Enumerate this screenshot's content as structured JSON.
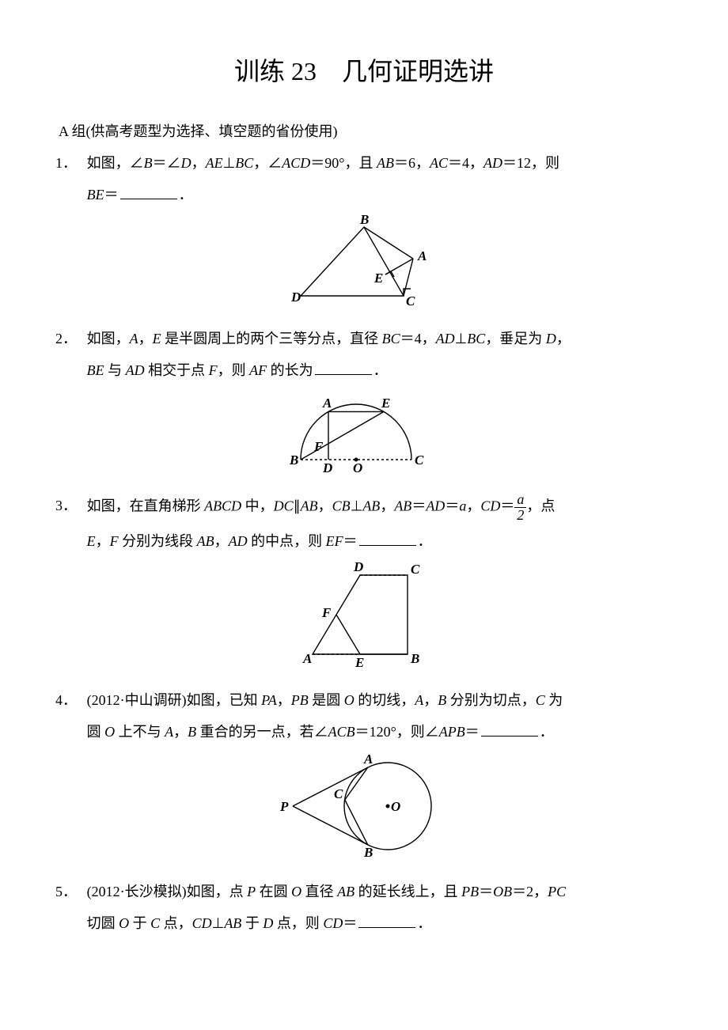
{
  "title": "训练 23　几何证明选讲",
  "group_label": "A 组(供高考题型为选择、填空题的省份使用)",
  "problems": {
    "p1": {
      "num": "1．",
      "line1": "如图，∠<span class='em'>B</span>＝∠<span class='em'>D</span>，<span class='em'>AE</span>⊥<span class='em'>BC</span>，∠<span class='em'>ACD</span>＝90°，且 <span class='em'>AB</span>＝6，<span class='em'>AC</span>＝4，<span class='em'>AD</span>＝12，则",
      "line2": "<span class='em'>BE</span>＝<span class='blank'></span>．"
    },
    "p2": {
      "num": "2．",
      "line1": "如图，<span class='em'>A</span>，<span class='em'>E</span> 是半圆周上的两个三等分点，直径 <span class='em'>BC</span>＝4，<span class='em'>AD</span>⊥<span class='em'>BC</span>，垂足为 <span class='em'>D</span>，",
      "line2": "<span class='em'>BE</span> 与 <span class='em'>AD</span> 相交于点 <span class='em'>F</span>，则 <span class='em'>AF</span> 的长为<span class='blank'></span>．"
    },
    "p3": {
      "num": "3．",
      "line1_a": "如图，在直角梯形 <span class='em'>ABCD</span> 中，<span class='em'>DC</span>∥<span class='em'>AB</span>，<span class='em'>CB</span>⊥<span class='em'>AB</span>，<span class='em'>AB</span>＝<span class='em'>AD</span>＝<span class='em'>a</span>，<span class='em'>CD</span>＝",
      "line1_b": "，点",
      "frac_num": "a",
      "frac_den": "2",
      "line2": "<span class='em'>E</span>，<span class='em'>F</span> 分别为线段 <span class='em'>AB</span>，<span class='em'>AD</span> 的中点，则 <span class='em'>EF</span>＝<span class='blank'></span>．"
    },
    "p4": {
      "num": "4．",
      "line1": "(2012·中山调研)如图，已知 <span class='em'>PA</span>，<span class='em'>PB</span> 是圆 <span class='em'>O</span> 的切线，<span class='em'>A</span>，<span class='em'>B</span> 分别为切点，<span class='em'>C</span> 为",
      "line2": "圆 <span class='em'>O</span> 上不与 <span class='em'>A</span>，<span class='em'>B</span> 重合的另一点，若∠<span class='em'>ACB</span>＝120°，则∠<span class='em'>APB</span>＝<span class='blank'></span>．"
    },
    "p5": {
      "num": "5．",
      "line1": "(2012·长沙模拟)如图，点 <span class='em'>P</span> 在圆 <span class='em'>O</span> 直径 <span class='em'>AB</span> 的延长线上，且 <span class='em'>PB</span>＝<span class='em'>OB</span>＝2，<span class='em'>PC</span>",
      "line2": "切圆 <span class='em'>O</span> 于 <span class='em'>C</span> 点，<span class='em'>CD</span>⊥<span class='em'>AB</span> 于 <span class='em'>D</span> 点，则 <span class='em'>CD</span>＝<span class='blank'></span>．"
    }
  },
  "figures": {
    "f1": {
      "labels": {
        "B": "B",
        "A": "A",
        "E": "E",
        "D": "D",
        "C": "C"
      },
      "stroke": "#000"
    },
    "f2": {
      "labels": {
        "A": "A",
        "E": "E",
        "B": "B",
        "C": "C",
        "F": "F",
        "D": "D",
        "O": "O"
      },
      "stroke": "#000"
    },
    "f3": {
      "labels": {
        "D": "D",
        "C": "C",
        "F": "F",
        "A": "A",
        "E": "E",
        "B": "B"
      },
      "stroke": "#000"
    },
    "f4": {
      "labels": {
        "A": "A",
        "B": "B",
        "C": "C",
        "P": "P",
        "O": "O"
      },
      "stroke": "#000"
    }
  }
}
